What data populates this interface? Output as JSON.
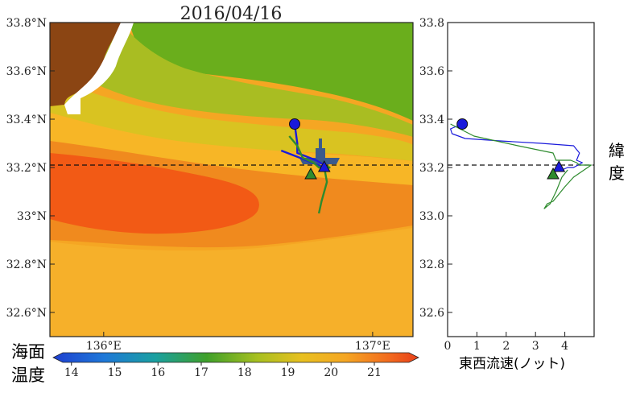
{
  "title": "2016/04/16",
  "map": {
    "lat_ticks": [
      "33.8°N",
      "33.6°N",
      "33.4°N",
      "33.2°N",
      "33°N",
      "32.8°N",
      "32.6°N"
    ],
    "lon_ticks": [
      "136°E",
      "137°E"
    ],
    "reference_line_label": "",
    "colors": {
      "land": "#8b4513",
      "sea_warm": "#f25a15",
      "sea_mid": "#f5a623",
      "sea_cool": "#c8c020",
      "sea_cold": "#6aae1c",
      "track_blue": "#1a1adb",
      "track_green": "#2e8b2e"
    }
  },
  "colorbar": {
    "label_line1": "海面",
    "label_line2": "温度",
    "ticks": [
      "14",
      "15",
      "16",
      "17",
      "18",
      "19",
      "20",
      "21"
    ]
  },
  "profile": {
    "ylabel_line1": "緯",
    "ylabel_line2": "度",
    "xlabel": "東西流速(ノット)",
    "y_ticks": [
      "33.8",
      "33.6",
      "33.4",
      "33.2",
      "33.0",
      "32.8",
      "32.6"
    ],
    "x_ticks": [
      "0",
      "1",
      "2",
      "3",
      "4"
    ]
  },
  "chart_data": [
    {
      "type": "map",
      "title": "2016/04/16",
      "xlim": [
        135.8,
        137.15
      ],
      "ylim": [
        32.5,
        33.8
      ],
      "reference_latitude": 33.21,
      "colorbar": {
        "label": "海面温度",
        "range": [
          13.8,
          21.8
        ],
        "ticks": [
          14,
          15,
          16,
          17,
          18,
          19,
          20,
          21
        ]
      },
      "series": [
        {
          "color": "blue",
          "lon": [
            136.71,
            136.72,
            136.72,
            136.79,
            136.82,
            136.82
          ],
          "lat": [
            33.38,
            33.3,
            33.26,
            33.23,
            33.21,
            33.2
          ]
        },
        {
          "color": "blue",
          "lon": [
            136.66,
            136.73,
            136.82
          ],
          "lat": [
            33.27,
            33.24,
            33.2
          ]
        },
        {
          "color": "green",
          "lon": [
            136.69,
            136.72,
            136.74,
            136.78,
            136.8,
            136.82,
            136.83,
            136.81,
            136.8
          ],
          "lat": [
            33.33,
            33.29,
            33.24,
            33.22,
            33.2,
            33.2,
            33.14,
            33.06,
            33.01
          ]
        },
        {
          "color": "green",
          "lon": [
            136.82,
            136.84,
            136.82
          ],
          "lat": [
            33.21,
            33.2,
            33.19
          ]
        }
      ],
      "markers": [
        {
          "shape": "circle",
          "color": "blue",
          "lon": 136.71,
          "lat": 33.38
        },
        {
          "shape": "triangle",
          "color": "blue",
          "lon": 136.82,
          "lat": 33.2
        },
        {
          "shape": "triangle",
          "color": "green",
          "lon": 136.77,
          "lat": 33.17
        }
      ]
    },
    {
      "type": "line",
      "xlabel": "東西流速(ノット)",
      "ylabel": "緯度",
      "xlim": [
        0,
        5
      ],
      "ylim": [
        32.5,
        33.8
      ],
      "reference_latitude": 33.21,
      "series": [
        {
          "color": "blue",
          "x": [
            0.5,
            0.1,
            0.15,
            0.6,
            1.8,
            3.2,
            4.3,
            4.5,
            4.4,
            4.6,
            4.3,
            4.1,
            3.9,
            3.8
          ],
          "y": [
            33.38,
            33.36,
            33.34,
            33.32,
            33.31,
            33.3,
            33.29,
            33.26,
            33.23,
            33.22,
            33.2,
            33.2,
            33.19,
            33.2
          ]
        },
        {
          "color": "green",
          "x": [
            0.1,
            0.9,
            2.4,
            3.6,
            3.7,
            4.2,
            4.4,
            4.5,
            4.6,
            4.9,
            4.3,
            4.0,
            3.8,
            3.6,
            3.4,
            3.3,
            3.5,
            3.7,
            3.9,
            4.1
          ],
          "y": [
            33.38,
            33.33,
            33.29,
            33.26,
            33.23,
            33.23,
            33.22,
            33.21,
            33.21,
            33.21,
            33.16,
            33.12,
            33.09,
            33.06,
            33.05,
            33.03,
            33.05,
            33.1,
            33.16,
            33.19
          ]
        }
      ],
      "markers": [
        {
          "shape": "circle",
          "color": "blue",
          "x": 0.5,
          "y": 33.38
        },
        {
          "shape": "triangle",
          "color": "blue",
          "x": 3.8,
          "y": 33.2
        },
        {
          "shape": "triangle",
          "color": "green",
          "x": 3.6,
          "y": 33.17
        }
      ]
    }
  ]
}
